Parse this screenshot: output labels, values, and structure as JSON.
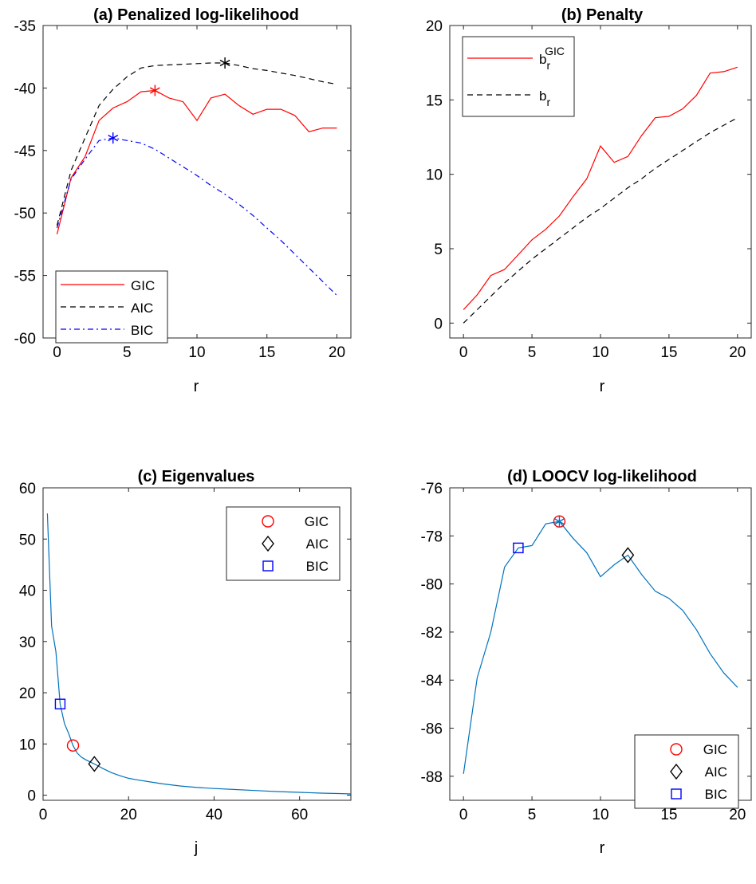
{
  "chart_data": [
    {
      "id": "a",
      "type": "line",
      "title": "(a) Penalized log-likelihood",
      "xlabel": "r",
      "ylabel": "",
      "xlim": [
        -1,
        21
      ],
      "ylim": [
        -60,
        -35
      ],
      "xticks": [
        0,
        5,
        10,
        15,
        20
      ],
      "yticks": [
        -60,
        -55,
        -50,
        -45,
        -40,
        -35
      ],
      "xtick_labels": [
        "0",
        "5",
        "10",
        "15",
        "20"
      ],
      "ytick_labels": [
        "-60",
        "-55",
        "-50",
        "-45",
        "-40",
        "-35"
      ],
      "grid": false,
      "legend": "bottom-left",
      "x": [
        0,
        1,
        2,
        3,
        4,
        5,
        6,
        7,
        8,
        9,
        10,
        11,
        12,
        13,
        14,
        15,
        16,
        17,
        18,
        19,
        20
      ],
      "series": [
        {
          "name": "GIC",
          "color": "#ff0000",
          "style": "solid",
          "values": [
            -51.7,
            -47.2,
            -45.5,
            -42.6,
            -41.6,
            -41.1,
            -40.3,
            -40.2,
            -40.8,
            -41.1,
            -42.6,
            -40.8,
            -40.5,
            -41.4,
            -42.1,
            -41.7,
            -41.7,
            -42.2,
            -43.5,
            -43.2,
            -43.2
          ],
          "marker": {
            "x": 7,
            "y": -40.2
          }
        },
        {
          "name": "AIC",
          "color": "#000000",
          "style": "dashed",
          "values": [
            -51.0,
            -46.6,
            -44.0,
            -41.4,
            -40.1,
            -39.1,
            -38.4,
            -38.2,
            -38.15,
            -38.1,
            -38.05,
            -38.0,
            -38.0,
            -38.2,
            -38.45,
            -38.6,
            -38.8,
            -39.0,
            -39.25,
            -39.5,
            -39.7
          ],
          "marker": {
            "x": 12,
            "y": -38.0
          }
        },
        {
          "name": "BIC",
          "color": "#0000ff",
          "style": "dashdot",
          "values": [
            -51.2,
            -47.3,
            -45.7,
            -44.2,
            -44.0,
            -44.2,
            -44.4,
            -44.9,
            -45.6,
            -46.3,
            -47.0,
            -47.8,
            -48.5,
            -49.3,
            -50.2,
            -51.2,
            -52.2,
            -53.3,
            -54.4,
            -55.5,
            -56.6
          ],
          "marker": {
            "x": 4,
            "y": -44.0
          }
        }
      ]
    },
    {
      "id": "b",
      "type": "line",
      "title": "(b) Penalty",
      "xlabel": "r",
      "ylabel": "",
      "xlim": [
        -1,
        21
      ],
      "ylim": [
        -1,
        20
      ],
      "xticks": [
        0,
        5,
        10,
        15,
        20
      ],
      "yticks": [
        0,
        5,
        10,
        15,
        20
      ],
      "xtick_labels": [
        "0",
        "5",
        "10",
        "15",
        "20"
      ],
      "ytick_labels": [
        "0",
        "5",
        "10",
        "15",
        "20"
      ],
      "grid": false,
      "legend": "top-left",
      "x": [
        0,
        1,
        2,
        3,
        4,
        5,
        6,
        7,
        8,
        9,
        10,
        11,
        12,
        13,
        14,
        15,
        16,
        17,
        18,
        19,
        20
      ],
      "series": [
        {
          "name": "b_r^GIC",
          "legend_base": "b",
          "legend_sub": "r",
          "legend_sup": "GIC",
          "color": "#ff0000",
          "style": "solid",
          "values": [
            0.9,
            1.9,
            3.2,
            3.6,
            4.6,
            5.6,
            6.3,
            7.2,
            8.5,
            9.7,
            11.9,
            10.8,
            11.2,
            12.6,
            13.8,
            13.9,
            14.4,
            15.3,
            16.8,
            16.9,
            17.2
          ]
        },
        {
          "name": "b_r",
          "legend_base": "b",
          "legend_sub": "r",
          "legend_sup": "",
          "color": "#000000",
          "style": "dashed",
          "values": [
            0.0,
            0.9,
            1.8,
            2.7,
            3.5,
            4.3,
            5.0,
            5.7,
            6.4,
            7.1,
            7.7,
            8.4,
            9.1,
            9.7,
            10.4,
            11.0,
            11.6,
            12.2,
            12.8,
            13.3,
            13.8
          ]
        }
      ]
    },
    {
      "id": "c",
      "type": "line",
      "title": "(c) Eigenvalues",
      "xlabel": "j",
      "ylabel": "",
      "xlim": [
        0,
        72
      ],
      "ylim": [
        -1,
        60
      ],
      "xticks": [
        0,
        20,
        40,
        60
      ],
      "yticks": [
        0,
        10,
        20,
        30,
        40,
        50,
        60
      ],
      "xtick_labels": [
        "0",
        "20",
        "40",
        "60"
      ],
      "ytick_labels": [
        "0",
        "10",
        "20",
        "30",
        "40",
        "50",
        "60"
      ],
      "grid": false,
      "legend": "top-right",
      "series": [
        {
          "name": "Eigenvalues",
          "color": "#0072bd",
          "style": "solid",
          "x": [
            1,
            2,
            3,
            4,
            5,
            6,
            7,
            8,
            9,
            10,
            11,
            12,
            14,
            16,
            18,
            20,
            22,
            25,
            28,
            32,
            36,
            40,
            45,
            50,
            55,
            60,
            65,
            70,
            72
          ],
          "values": [
            55,
            33,
            28,
            17.8,
            14,
            12,
            9.7,
            8.2,
            7.4,
            6.9,
            6.5,
            6.1,
            5.2,
            4.4,
            3.8,
            3.3,
            3.0,
            2.6,
            2.2,
            1.8,
            1.5,
            1.3,
            1.1,
            0.9,
            0.7,
            0.55,
            0.4,
            0.3,
            0.25
          ]
        }
      ],
      "markers": [
        {
          "name": "GIC",
          "shape": "circle",
          "color": "#ff0000",
          "x": 7,
          "y": 9.7
        },
        {
          "name": "AIC",
          "shape": "diamond",
          "color": "#000000",
          "x": 12,
          "y": 6.1
        },
        {
          "name": "BIC",
          "shape": "square",
          "color": "#0000ff",
          "x": 4,
          "y": 17.8
        }
      ]
    },
    {
      "id": "d",
      "type": "line",
      "title": "(d) LOOCV log-likelihood",
      "xlabel": "r",
      "ylabel": "",
      "xlim": [
        -1,
        21
      ],
      "ylim": [
        -89,
        -76
      ],
      "xticks": [
        0,
        5,
        10,
        15,
        20
      ],
      "yticks": [
        -88,
        -86,
        -84,
        -82,
        -80,
        -78,
        -76
      ],
      "xtick_labels": [
        "0",
        "5",
        "10",
        "15",
        "20"
      ],
      "ytick_labels": [
        "-88",
        "-86",
        "-84",
        "-82",
        "-80",
        "-78",
        "-76"
      ],
      "grid": false,
      "legend": "bottom-right",
      "x": [
        0,
        1,
        2,
        3,
        4,
        5,
        6,
        7,
        8,
        9,
        10,
        11,
        12,
        13,
        14,
        15,
        16,
        17,
        18,
        19,
        20
      ],
      "series": [
        {
          "name": "LOOCV",
          "color": "#0072bd",
          "style": "solid",
          "values": [
            -87.9,
            -83.9,
            -82.0,
            -79.3,
            -78.5,
            -78.4,
            -77.5,
            -77.4,
            -78.1,
            -78.7,
            -79.7,
            -79.2,
            -78.8,
            -79.6,
            -80.3,
            -80.6,
            -81.1,
            -81.9,
            -82.9,
            -83.7,
            -84.3
          ]
        }
      ],
      "markers": [
        {
          "name": "GIC",
          "shape": "circle",
          "color": "#ff0000",
          "x": 7,
          "y": -77.4
        },
        {
          "name": "AIC",
          "shape": "diamond",
          "color": "#000000",
          "x": 12,
          "y": -78.8
        },
        {
          "name": "BIC",
          "shape": "square",
          "color": "#0000ff",
          "x": 4,
          "y": -78.5
        },
        {
          "name": "",
          "shape": "star",
          "color": "#0072bd",
          "x": 7,
          "y": -77.4
        }
      ]
    }
  ]
}
